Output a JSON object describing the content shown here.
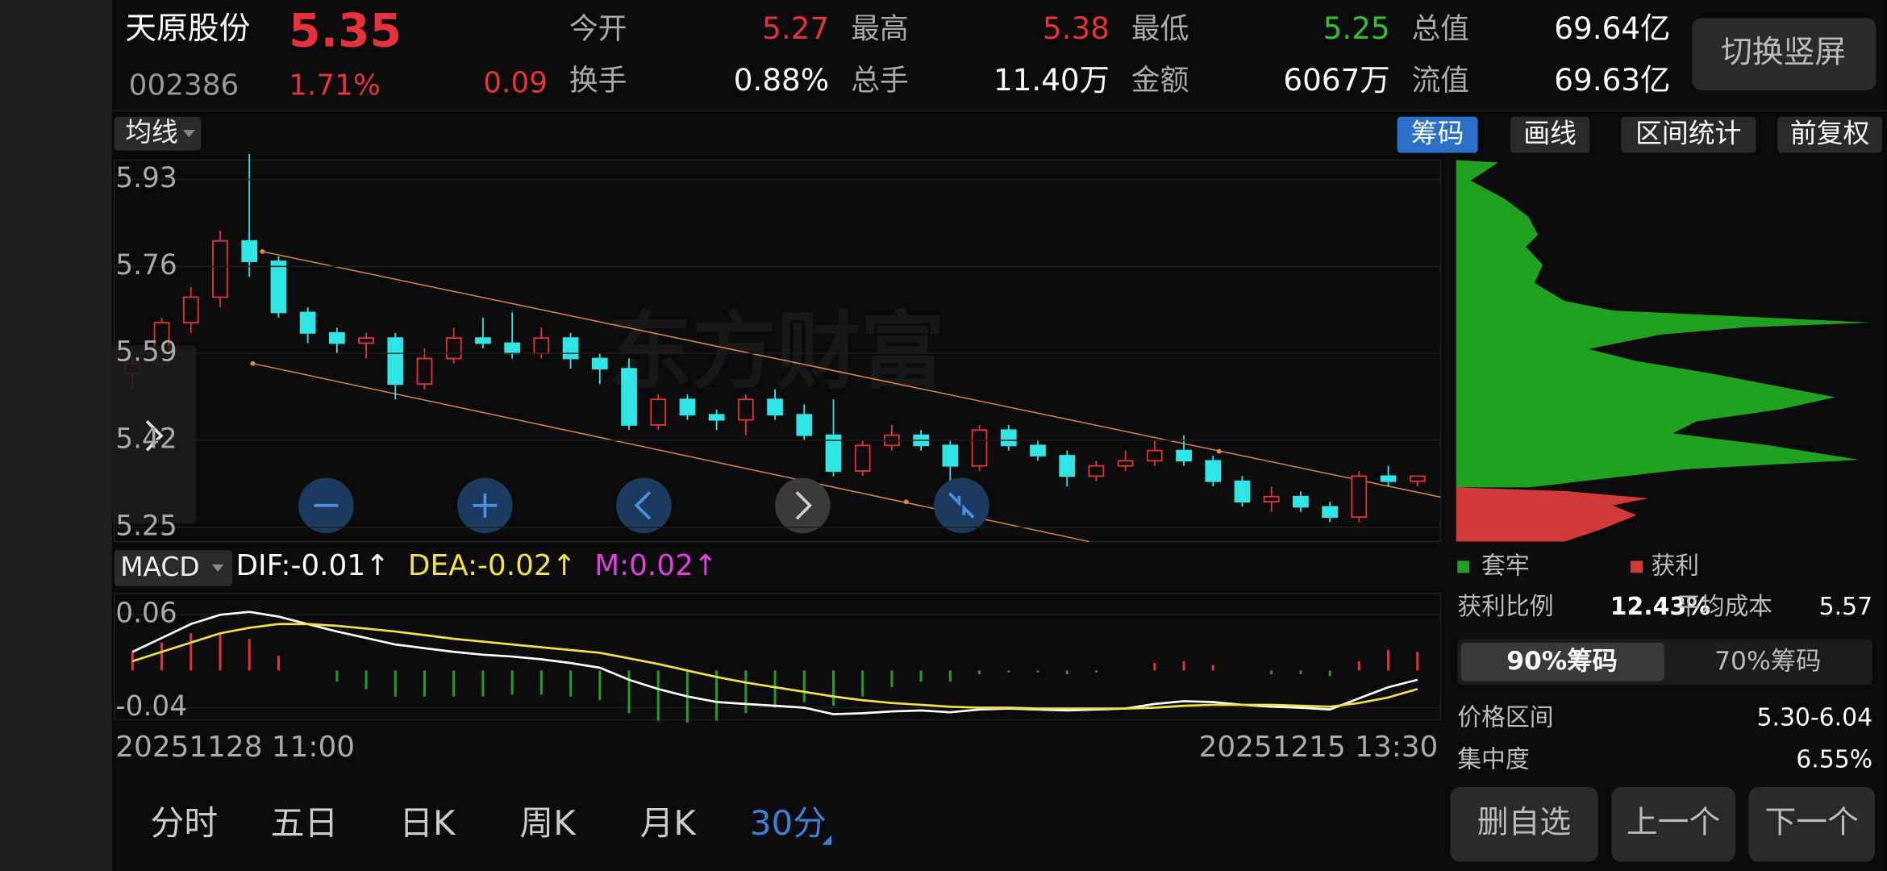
{
  "header": {
    "name": "天原股份",
    "price": "5.35",
    "code": "002386",
    "pct": "1.71%",
    "change": "0.09",
    "stats": [
      {
        "label": "今开",
        "value": "5.27",
        "color": "#e8313a"
      },
      {
        "label": "最高",
        "value": "5.38",
        "color": "#e8313a"
      },
      {
        "label": "最低",
        "value": "5.25",
        "color": "#2dc42d"
      },
      {
        "label": "总值",
        "value": "69.64亿",
        "color": "#ffffff"
      },
      {
        "label": "换手",
        "value": "0.88%",
        "color": "#ffffff"
      },
      {
        "label": "总手",
        "value": "11.40万",
        "color": "#ffffff"
      },
      {
        "label": "金额",
        "value": "6067万",
        "color": "#ffffff"
      },
      {
        "label": "流值",
        "value": "69.63亿",
        "color": "#ffffff"
      }
    ],
    "switch": "切换竖屏"
  },
  "toolbar": {
    "ma": "均线",
    "buttons": [
      "筹码",
      "画线",
      "区间统计",
      "前复权"
    ],
    "active": 0
  },
  "watermark": "东方财富",
  "kline": {
    "ylim": [
      5.222,
      5.968
    ],
    "yticks": [
      5.93,
      5.76,
      5.59,
      5.42,
      5.25
    ],
    "up_color": "#e8313a",
    "down_color": "#2ee6e6",
    "candles": [
      [
        5.55,
        5.58,
        5.52,
        5.57
      ],
      [
        5.57,
        5.66,
        5.56,
        5.65
      ],
      [
        5.65,
        5.72,
        5.63,
        5.7
      ],
      [
        5.7,
        5.83,
        5.68,
        5.81
      ],
      [
        5.81,
        5.98,
        5.74,
        5.77
      ],
      [
        5.77,
        5.78,
        5.66,
        5.67
      ],
      [
        5.67,
        5.68,
        5.61,
        5.63
      ],
      [
        5.63,
        5.64,
        5.59,
        5.61
      ],
      [
        5.61,
        5.63,
        5.58,
        5.62
      ],
      [
        5.62,
        5.63,
        5.5,
        5.53
      ],
      [
        5.53,
        5.6,
        5.52,
        5.58
      ],
      [
        5.58,
        5.64,
        5.57,
        5.62
      ],
      [
        5.62,
        5.66,
        5.6,
        5.61
      ],
      [
        5.61,
        5.67,
        5.58,
        5.59
      ],
      [
        5.59,
        5.64,
        5.58,
        5.62
      ],
      [
        5.62,
        5.63,
        5.56,
        5.58
      ],
      [
        5.58,
        5.59,
        5.53,
        5.56
      ],
      [
        5.56,
        5.58,
        5.44,
        5.45
      ],
      [
        5.45,
        5.51,
        5.44,
        5.5
      ],
      [
        5.5,
        5.51,
        5.46,
        5.47
      ],
      [
        5.47,
        5.48,
        5.44,
        5.46
      ],
      [
        5.46,
        5.51,
        5.43,
        5.5
      ],
      [
        5.5,
        5.52,
        5.46,
        5.47
      ],
      [
        5.47,
        5.49,
        5.42,
        5.43
      ],
      [
        5.43,
        5.5,
        5.35,
        5.36
      ],
      [
        5.36,
        5.42,
        5.35,
        5.41
      ],
      [
        5.41,
        5.45,
        5.4,
        5.43
      ],
      [
        5.43,
        5.44,
        5.4,
        5.41
      ],
      [
        5.41,
        5.42,
        5.34,
        5.37
      ],
      [
        5.37,
        5.45,
        5.36,
        5.44
      ],
      [
        5.44,
        5.45,
        5.4,
        5.41
      ],
      [
        5.41,
        5.42,
        5.38,
        5.39
      ],
      [
        5.39,
        5.4,
        5.33,
        5.35
      ],
      [
        5.35,
        5.38,
        5.34,
        5.37
      ],
      [
        5.37,
        5.4,
        5.36,
        5.38
      ],
      [
        5.38,
        5.42,
        5.37,
        5.4
      ],
      [
        5.4,
        5.43,
        5.37,
        5.38
      ],
      [
        5.38,
        5.39,
        5.33,
        5.34
      ],
      [
        5.34,
        5.35,
        5.29,
        5.3
      ],
      [
        5.3,
        5.33,
        5.28,
        5.31
      ],
      [
        5.31,
        5.32,
        5.28,
        5.29
      ],
      [
        5.29,
        5.3,
        5.26,
        5.27
      ],
      [
        5.27,
        5.36,
        5.26,
        5.35
      ],
      [
        5.35,
        5.37,
        5.33,
        5.34
      ],
      [
        5.34,
        5.35,
        5.33,
        5.35
      ]
    ]
  },
  "macd": {
    "name": "MACD",
    "dif_label": "DIF:-0.01↑",
    "dea_label": "DEA:-0.02↑",
    "m_label": "M:0.02↑",
    "ylim": [
      -0.053,
      0.083
    ],
    "yticks": [
      0.06,
      -0.04
    ],
    "dif": [
      0.02,
      0.035,
      0.05,
      0.06,
      0.063,
      0.058,
      0.05,
      0.042,
      0.035,
      0.028,
      0.024,
      0.02,
      0.017,
      0.015,
      0.012,
      0.008,
      0.003,
      -0.01,
      -0.02,
      -0.028,
      -0.034,
      -0.036,
      -0.038,
      -0.04,
      -0.047,
      -0.046,
      -0.044,
      -0.043,
      -0.045,
      -0.042,
      -0.041,
      -0.042,
      -0.043,
      -0.042,
      -0.041,
      -0.036,
      -0.033,
      -0.034,
      -0.037,
      -0.039,
      -0.04,
      -0.042,
      -0.03,
      -0.018,
      -0.01
    ],
    "dea": [
      0.01,
      0.02,
      0.03,
      0.04,
      0.046,
      0.05,
      0.05,
      0.048,
      0.045,
      0.042,
      0.038,
      0.034,
      0.031,
      0.028,
      0.025,
      0.022,
      0.019,
      0.013,
      0.007,
      0.0,
      -0.007,
      -0.013,
      -0.018,
      -0.023,
      -0.028,
      -0.032,
      -0.035,
      -0.037,
      -0.039,
      -0.04,
      -0.04,
      -0.041,
      -0.041,
      -0.041,
      -0.041,
      -0.04,
      -0.038,
      -0.037,
      -0.037,
      -0.037,
      -0.038,
      -0.039,
      -0.035,
      -0.029,
      -0.02
    ],
    "hist": [
      0.02,
      0.03,
      0.04,
      0.04,
      0.034,
      0.016,
      0,
      -0.012,
      -0.02,
      -0.028,
      -0.028,
      -0.028,
      -0.028,
      -0.026,
      -0.026,
      -0.028,
      -0.032,
      -0.046,
      -0.054,
      -0.056,
      -0.054,
      -0.046,
      -0.04,
      -0.034,
      -0.038,
      -0.028,
      -0.018,
      -0.012,
      -0.012,
      -0.004,
      -0.002,
      -0.002,
      -0.004,
      -0.002,
      0,
      0.008,
      0.01,
      0.006,
      0,
      -0.004,
      -0.004,
      -0.006,
      0.01,
      0.022,
      0.02
    ]
  },
  "dates": [
    "20251128 11:00",
    "20251215 13:30"
  ],
  "periods": {
    "tabs": [
      "分时",
      "五日",
      "日K",
      "周K",
      "月K",
      "30分"
    ],
    "active": 5
  },
  "chips": {
    "legend": [
      "套牢",
      "获利"
    ],
    "profit_label": "获利比例",
    "profit": "12.43%",
    "cost_label": "平均成本",
    "cost": "5.57",
    "tabs": [
      "90%筹码",
      "70%筹码"
    ],
    "range_label": "价格区间",
    "range": "5.30-6.04",
    "conc_label": "集中度",
    "conc": "6.55%"
  },
  "actions": [
    "删自选",
    "上一个",
    "下一个"
  ]
}
